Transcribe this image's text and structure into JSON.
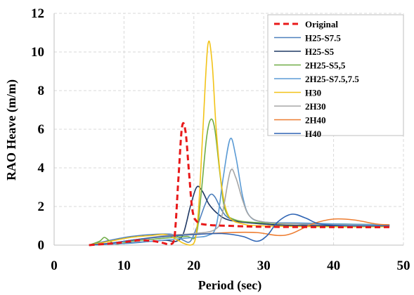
{
  "chart_data": {
    "type": "line",
    "title": "",
    "xlabel": "Period (sec)",
    "ylabel": "RAO Heave (m/m)",
    "xlim": [
      0,
      50
    ],
    "ylim": [
      0,
      12
    ],
    "xticks": [
      0,
      10,
      20,
      30,
      40,
      50
    ],
    "yticks": [
      0,
      2,
      4,
      6,
      8,
      10,
      12
    ],
    "grid": true,
    "legend_position": "top-right",
    "series": [
      {
        "name": "Original",
        "color": "#e8191a",
        "dashed": true,
        "points": [
          [
            5,
            0
          ],
          [
            8,
            0.08
          ],
          [
            10,
            0.15
          ],
          [
            12,
            0.25
          ],
          [
            14,
            0.22
          ],
          [
            15.5,
            0.12
          ],
          [
            16.5,
            0.05
          ],
          [
            17.2,
            0.3
          ],
          [
            17.8,
            3.5
          ],
          [
            18.3,
            6.1
          ],
          [
            18.8,
            5.9
          ],
          [
            19.3,
            3.8
          ],
          [
            19.8,
            1.8
          ],
          [
            20.5,
            1.2
          ],
          [
            22,
            1.05
          ],
          [
            25,
            1.0
          ],
          [
            30,
            0.95
          ],
          [
            40,
            0.93
          ],
          [
            48,
            0.93
          ]
        ]
      },
      {
        "name": "H25-S7.5",
        "color": "#4f81bd",
        "dashed": false,
        "points": [
          [
            5,
            0
          ],
          [
            8,
            0.25
          ],
          [
            11,
            0.45
          ],
          [
            14,
            0.55
          ],
          [
            17,
            0.55
          ],
          [
            18.5,
            0.25
          ],
          [
            19.5,
            0.2
          ],
          [
            20.5,
            1.0
          ],
          [
            21.5,
            2.0
          ],
          [
            22.3,
            2.6
          ],
          [
            23,
            2.5
          ],
          [
            24,
            1.8
          ],
          [
            25,
            1.4
          ],
          [
            27,
            1.2
          ],
          [
            30,
            1.1
          ],
          [
            33,
            1.0
          ],
          [
            36,
            1.05
          ],
          [
            40,
            1.05
          ],
          [
            44,
            1.0
          ],
          [
            48,
            1.0
          ]
        ]
      },
      {
        "name": "H25-S5",
        "color": "#1f3864",
        "dashed": false,
        "points": [
          [
            5,
            0
          ],
          [
            8,
            0.05
          ],
          [
            11,
            0.12
          ],
          [
            14,
            0.2
          ],
          [
            16,
            0.25
          ],
          [
            17.5,
            0.2
          ],
          [
            18.5,
            0.6
          ],
          [
            19.5,
            2.0
          ],
          [
            20.4,
            3.0
          ],
          [
            21.2,
            2.8
          ],
          [
            22.2,
            2.1
          ],
          [
            23.5,
            1.6
          ],
          [
            25,
            1.3
          ],
          [
            28,
            1.15
          ],
          [
            32,
            1.05
          ],
          [
            38,
            1.0
          ],
          [
            44,
            1.0
          ],
          [
            48,
            1.0
          ]
        ]
      },
      {
        "name": "2H25-S5,5",
        "color": "#70ad47",
        "dashed": false,
        "points": [
          [
            5,
            0
          ],
          [
            6.5,
            0.2
          ],
          [
            7.2,
            0.4
          ],
          [
            8,
            0.2
          ],
          [
            9,
            0.05
          ],
          [
            11,
            0.2
          ],
          [
            14,
            0.3
          ],
          [
            17,
            0.4
          ],
          [
            19,
            0.45
          ],
          [
            20.3,
            0.5
          ],
          [
            21,
            2.5
          ],
          [
            21.8,
            5.5
          ],
          [
            22.4,
            6.5
          ],
          [
            23,
            6.0
          ],
          [
            23.8,
            3.5
          ],
          [
            24.5,
            1.8
          ],
          [
            26,
            1.3
          ],
          [
            30,
            1.15
          ],
          [
            35,
            1.1
          ],
          [
            40,
            1.1
          ],
          [
            48,
            1.05
          ]
        ]
      },
      {
        "name": "2H25-S7.5,7.5",
        "color": "#5b9bd5",
        "dashed": false,
        "points": [
          [
            5,
            0
          ],
          [
            8,
            0.05
          ],
          [
            11,
            0.1
          ],
          [
            14,
            0.2
          ],
          [
            17,
            0.3
          ],
          [
            20,
            0.4
          ],
          [
            22,
            0.5
          ],
          [
            23.2,
            1.0
          ],
          [
            24.2,
            3.5
          ],
          [
            25.2,
            5.5
          ],
          [
            26,
            4.6
          ],
          [
            27,
            2.5
          ],
          [
            28,
            1.5
          ],
          [
            30,
            1.2
          ],
          [
            35,
            1.15
          ],
          [
            40,
            1.1
          ],
          [
            48,
            1.05
          ]
        ]
      },
      {
        "name": "H30",
        "color": "#f2c318",
        "dashed": false,
        "points": [
          [
            5,
            0
          ],
          [
            8,
            0.2
          ],
          [
            11,
            0.4
          ],
          [
            14,
            0.5
          ],
          [
            16,
            0.55
          ],
          [
            17.5,
            0.3
          ],
          [
            18.5,
            0.1
          ],
          [
            19.5,
            0.0
          ],
          [
            20.2,
            0.3
          ],
          [
            20.7,
            2.0
          ],
          [
            21.3,
            6.0
          ],
          [
            22,
            10.35
          ],
          [
            22.6,
            9.5
          ],
          [
            23.2,
            6.0
          ],
          [
            24,
            3.0
          ],
          [
            25,
            1.5
          ],
          [
            27,
            1.1
          ],
          [
            30,
            1.0
          ],
          [
            40,
            0.95
          ],
          [
            48,
            0.95
          ]
        ]
      },
      {
        "name": "2H30",
        "color": "#a5a5a5",
        "dashed": false,
        "points": [
          [
            5,
            0
          ],
          [
            8,
            0.1
          ],
          [
            12,
            0.3
          ],
          [
            16,
            0.5
          ],
          [
            20,
            0.6
          ],
          [
            23,
            0.8
          ],
          [
            24,
            1.5
          ],
          [
            25.2,
            3.8
          ],
          [
            26,
            3.5
          ],
          [
            27,
            2.3
          ],
          [
            28,
            1.5
          ],
          [
            30,
            1.2
          ],
          [
            35,
            1.1
          ],
          [
            40,
            1.05
          ],
          [
            48,
            1.0
          ]
        ]
      },
      {
        "name": "2H40",
        "color": "#ed7d31",
        "dashed": false,
        "points": [
          [
            5,
            0
          ],
          [
            8,
            0.1
          ],
          [
            12,
            0.3
          ],
          [
            16,
            0.45
          ],
          [
            20,
            0.55
          ],
          [
            25,
            0.65
          ],
          [
            29,
            0.65
          ],
          [
            32,
            0.5
          ],
          [
            34,
            0.6
          ],
          [
            37,
            1.1
          ],
          [
            40,
            1.35
          ],
          [
            43,
            1.3
          ],
          [
            46,
            1.1
          ],
          [
            48,
            1.05
          ]
        ]
      },
      {
        "name": "H40",
        "color": "#2e64b4",
        "dashed": false,
        "points": [
          [
            5,
            0
          ],
          [
            8,
            0.1
          ],
          [
            12,
            0.3
          ],
          [
            16,
            0.45
          ],
          [
            20,
            0.55
          ],
          [
            24,
            0.6
          ],
          [
            27,
            0.45
          ],
          [
            29,
            0.2
          ],
          [
            30.5,
            0.5
          ],
          [
            32,
            1.2
          ],
          [
            34,
            1.6
          ],
          [
            36,
            1.4
          ],
          [
            38,
            1.1
          ],
          [
            42,
            1.0
          ],
          [
            48,
            1.0
          ]
        ]
      }
    ]
  }
}
